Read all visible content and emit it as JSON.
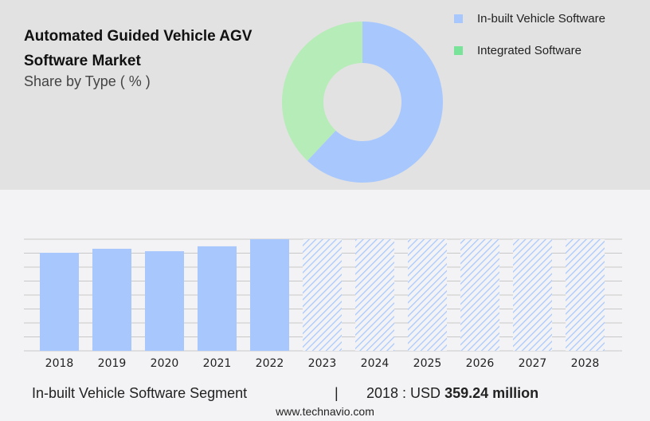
{
  "header": {
    "title_line1": "Automated Guided Vehicle AGV",
    "title_line2": "Software Market",
    "subtitle": "Share by Type ( % )"
  },
  "colors": {
    "inbuilt": "#a8c8fd",
    "integrated": "#b5ecb7",
    "integrated_legend": "#7ae39a",
    "grid": "#c8c8c8"
  },
  "chart_data": [
    {
      "type": "pie",
      "donut": true,
      "series": [
        {
          "name": "In-built Vehicle Software",
          "value": 62
        },
        {
          "name": "Integrated Software",
          "value": 38
        }
      ],
      "legend": "top-right"
    },
    {
      "type": "bar",
      "categories": [
        "2018",
        "2019",
        "2020",
        "2021",
        "2022",
        "2023",
        "2024",
        "2025",
        "2026",
        "2027",
        "2028"
      ],
      "values": [
        359.24,
        374,
        365,
        383,
        409,
        null,
        null,
        null,
        null,
        null,
        null
      ],
      "forecast": [
        "2023",
        "2024",
        "2025",
        "2026",
        "2027",
        "2028"
      ],
      "ylim": [
        0,
        409
      ],
      "grid": true
    }
  ],
  "footer": {
    "segment": "In-built Vehicle Software Segment",
    "separator": "|",
    "year_label": "2018 : USD",
    "value": "359.24 million",
    "site": "www.technavio.com"
  }
}
